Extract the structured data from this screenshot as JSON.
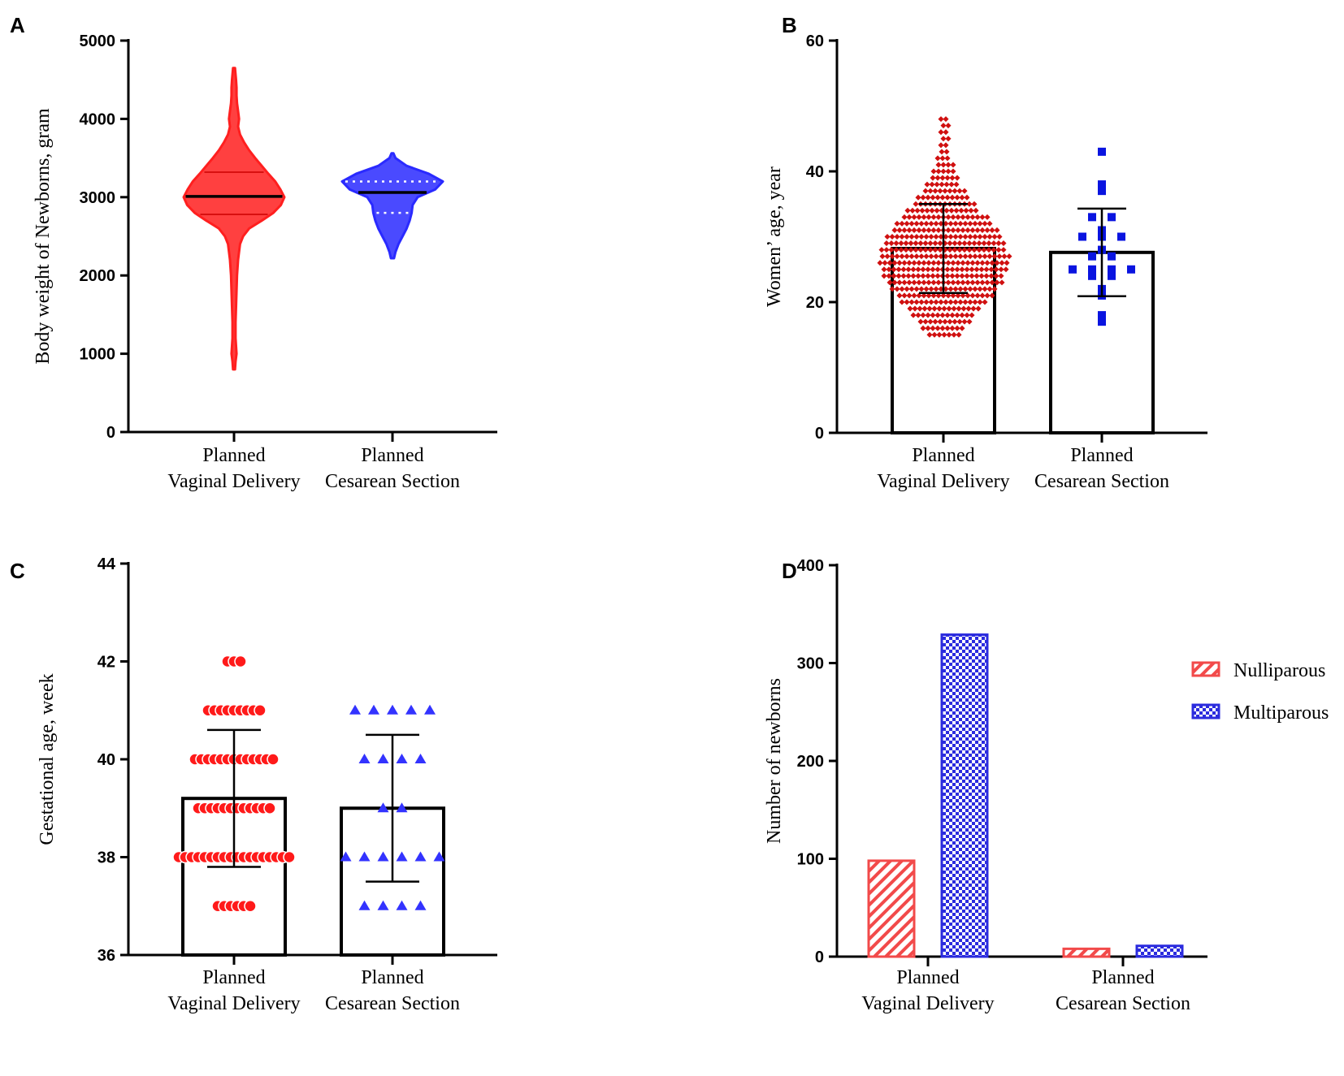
{
  "figure": {
    "panels": [
      "A",
      "B",
      "C",
      "D"
    ]
  },
  "chart_data": [
    {
      "id": "A",
      "type": "violin",
      "ylabel": "Body weight of Newborns, gram",
      "ylim": [
        0,
        5000
      ],
      "yticks": [
        0,
        1000,
        2000,
        3000,
        4000,
        5000
      ],
      "categories": [
        {
          "line1": "Planned",
          "line2": "Vaginal Delivery"
        },
        {
          "line1": "Planned",
          "line2": "Cesarean Section"
        }
      ],
      "series": [
        {
          "name": "Planned Vaginal Delivery",
          "color": "#ff1f1f",
          "median": 3010,
          "q1": 2780,
          "q3": 3320,
          "profile": [
            [
              800,
              0.02
            ],
            [
              900,
              0.03
            ],
            [
              1000,
              0.05
            ],
            [
              1200,
              0.03
            ],
            [
              1400,
              0.03
            ],
            [
              1600,
              0.04
            ],
            [
              1800,
              0.05
            ],
            [
              2000,
              0.06
            ],
            [
              2200,
              0.08
            ],
            [
              2400,
              0.12
            ],
            [
              2500,
              0.18
            ],
            [
              2600,
              0.3
            ],
            [
              2700,
              0.55
            ],
            [
              2800,
              0.78
            ],
            [
              2900,
              0.93
            ],
            [
              3000,
              1.0
            ],
            [
              3100,
              0.92
            ],
            [
              3200,
              0.82
            ],
            [
              3300,
              0.68
            ],
            [
              3400,
              0.55
            ],
            [
              3500,
              0.42
            ],
            [
              3600,
              0.3
            ],
            [
              3700,
              0.2
            ],
            [
              3800,
              0.12
            ],
            [
              3900,
              0.08
            ],
            [
              4000,
              0.1
            ],
            [
              4100,
              0.08
            ],
            [
              4200,
              0.06
            ],
            [
              4300,
              0.05
            ],
            [
              4400,
              0.05
            ],
            [
              4500,
              0.04
            ],
            [
              4650,
              0.02
            ]
          ]
        },
        {
          "name": "Planned Cesarean Section",
          "color": "#2a2aff",
          "median": 3060,
          "q1": 2800,
          "q3": 3200,
          "profile": [
            [
              2220,
              0.03
            ],
            [
              2300,
              0.06
            ],
            [
              2400,
              0.12
            ],
            [
              2500,
              0.2
            ],
            [
              2600,
              0.28
            ],
            [
              2700,
              0.34
            ],
            [
              2800,
              0.38
            ],
            [
              2900,
              0.4
            ],
            [
              3000,
              0.5
            ],
            [
              3100,
              0.85
            ],
            [
              3200,
              1.0
            ],
            [
              3300,
              0.72
            ],
            [
              3400,
              0.28
            ],
            [
              3500,
              0.06
            ],
            [
              3560,
              0.02
            ]
          ]
        }
      ]
    },
    {
      "id": "B",
      "type": "bar-scatter",
      "ylabel": "Women’ age, year",
      "ylim": [
        0,
        60
      ],
      "yticks": [
        0,
        20,
        40,
        60
      ],
      "categories": [
        {
          "line1": "Planned",
          "line2": "Vaginal Delivery"
        },
        {
          "line1": "Planned",
          "line2": "Cesarean Section"
        }
      ],
      "series": [
        {
          "name": "Planned Vaginal Delivery",
          "color": "#d01010",
          "marker": "diamond",
          "mean": 28.2,
          "sd": 6.8,
          "min": 15,
          "max": 48
        },
        {
          "name": "Planned Cesarean Section",
          "color": "#0a14e0",
          "marker": "square",
          "mean": 27.6,
          "sd": 6.7,
          "values": [
            43,
            38,
            37,
            33,
            33,
            31,
            30,
            30,
            30,
            28,
            27,
            27,
            25,
            25,
            25,
            25,
            24,
            24,
            22,
            21,
            18,
            17
          ]
        }
      ]
    },
    {
      "id": "C",
      "type": "bar-scatter",
      "ylabel": "Gestational age, week",
      "ylim": [
        36,
        44
      ],
      "yticks": [
        36,
        38,
        40,
        42,
        44
      ],
      "categories": [
        {
          "line1": "Planned",
          "line2": "Vaginal Delivery"
        },
        {
          "line1": "Planned",
          "line2": "Cesarean Section"
        }
      ],
      "series": [
        {
          "name": "Planned Vaginal Delivery",
          "color": "#ff1a1a",
          "marker": "circle",
          "mean": 39.2,
          "sd": 1.4,
          "counts": {
            "37": 6,
            "38": 18,
            "39": 12,
            "40": 13,
            "41": 9,
            "42": 3
          }
        },
        {
          "name": "Planned Cesarean Section",
          "color": "#3333ff",
          "marker": "triangle",
          "mean": 39.0,
          "sd": 1.5,
          "counts": {
            "37": 4,
            "38": 6,
            "39": 2,
            "40": 4,
            "41": 5
          }
        }
      ]
    },
    {
      "id": "D",
      "type": "bar",
      "ylabel": "Number of newborns",
      "ylim": [
        0,
        400
      ],
      "yticks": [
        0,
        100,
        200,
        300,
        400
      ],
      "categories": [
        {
          "line1": "Planned",
          "line2": "Vaginal Delivery"
        },
        {
          "line1": "Planned",
          "line2": "Cesarean Section"
        }
      ],
      "series": [
        {
          "name": "Nulliparous",
          "color": "#f24a4a",
          "pattern": "diagonal",
          "values": [
            98,
            8
          ]
        },
        {
          "name": "Multiparous",
          "color": "#2b2bde",
          "pattern": "checker",
          "values": [
            329,
            11
          ]
        }
      ],
      "legend_position": "top-right"
    }
  ]
}
